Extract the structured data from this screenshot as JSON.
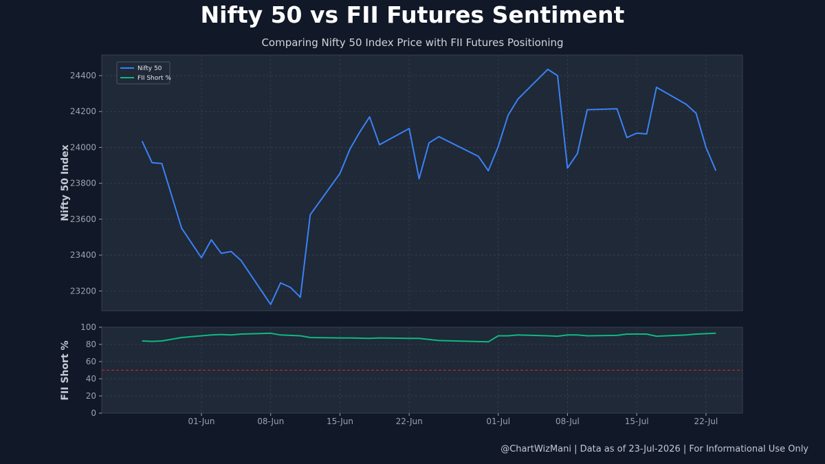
{
  "title": "Nifty 50 vs FII Futures Sentiment",
  "subtitle": "Comparing Nifty 50 Index Price with FII Futures Positioning",
  "footer": "@ChartWizMani | Data as of 23-Jul-2026 | For Informational Use Only",
  "colors": {
    "background": "#111827",
    "panel": "#1f2937",
    "nifty_line": "#3b82f6",
    "fii_line": "#10b981",
    "reference_line": "#dc2626",
    "grid": "#374151"
  },
  "chart_data": [
    {
      "type": "line",
      "ylabel": "Nifty 50 Index",
      "ylim": [
        23090,
        24515
      ],
      "yticks": [
        23200,
        23400,
        23600,
        23800,
        24000,
        24200,
        24400
      ],
      "grid": true,
      "legend": {
        "placement": "top-left",
        "entries": [
          "Nifty 50",
          "FII Short %"
        ]
      },
      "series": [
        {
          "name": "Nifty 50",
          "color": "#3b82f6",
          "points": [
            [
              "2026-05-26",
              24035
            ],
            [
              "2026-05-27",
              23915
            ],
            [
              "2026-05-28",
              23910
            ],
            [
              "2026-05-30",
              23550
            ],
            [
              "2026-06-01",
              23385
            ],
            [
              "2026-06-02",
              23485
            ],
            [
              "2026-06-03",
              23410
            ],
            [
              "2026-06-04",
              23420
            ],
            [
              "2026-06-05",
              23370
            ],
            [
              "2026-06-08",
              23125
            ],
            [
              "2026-06-09",
              23245
            ],
            [
              "2026-06-10",
              23220
            ],
            [
              "2026-06-11",
              23165
            ],
            [
              "2026-06-12",
              23625
            ],
            [
              "2026-06-15",
              23855
            ],
            [
              "2026-06-16",
              23990
            ],
            [
              "2026-06-17",
              24085
            ],
            [
              "2026-06-18",
              24170
            ],
            [
              "2026-06-19",
              24015
            ],
            [
              "2026-06-22",
              24105
            ],
            [
              "2026-06-23",
              23825
            ],
            [
              "2026-06-24",
              24025
            ],
            [
              "2026-06-25",
              24060
            ],
            [
              "2026-06-29",
              23950
            ],
            [
              "2026-06-30",
              23870
            ],
            [
              "2026-07-01",
              24005
            ],
            [
              "2026-07-02",
              24180
            ],
            [
              "2026-07-03",
              24270
            ],
            [
              "2026-07-06",
              24435
            ],
            [
              "2026-07-07",
              24400
            ],
            [
              "2026-07-08",
              23885
            ],
            [
              "2026-07-09",
              23965
            ],
            [
              "2026-07-10",
              24210
            ],
            [
              "2026-07-13",
              24215
            ],
            [
              "2026-07-14",
              24055
            ],
            [
              "2026-07-15",
              24080
            ],
            [
              "2026-07-16",
              24075
            ],
            [
              "2026-07-17",
              24335
            ],
            [
              "2026-07-20",
              24240
            ],
            [
              "2026-07-21",
              24190
            ],
            [
              "2026-07-22",
              24000
            ],
            [
              "2026-07-23",
              23870
            ]
          ]
        }
      ]
    },
    {
      "type": "line",
      "ylabel": "FII Short %",
      "ylim": [
        0,
        100
      ],
      "yticks": [
        0,
        20,
        40,
        60,
        80,
        100
      ],
      "xticks": [
        "01-Jun",
        "08-Jun",
        "15-Jun",
        "22-Jun",
        "01-Jul",
        "08-Jul",
        "15-Jul",
        "22-Jul"
      ],
      "xtick_dates": [
        "2026-06-01",
        "2026-06-08",
        "2026-06-15",
        "2026-06-22",
        "2026-07-01",
        "2026-07-08",
        "2026-07-15",
        "2026-07-22"
      ],
      "reference_line": {
        "y": 50,
        "style": "dashed",
        "color": "#dc2626"
      },
      "grid": true,
      "series": [
        {
          "name": "FII Short %",
          "color": "#10b981",
          "points": [
            [
              "2026-05-26",
              84
            ],
            [
              "2026-05-27",
              83.5
            ],
            [
              "2026-05-28",
              84
            ],
            [
              "2026-05-30",
              88
            ],
            [
              "2026-06-01",
              90
            ],
            [
              "2026-06-02",
              91
            ],
            [
              "2026-06-03",
              91.5
            ],
            [
              "2026-06-04",
              91
            ],
            [
              "2026-06-05",
              92
            ],
            [
              "2026-06-08",
              93
            ],
            [
              "2026-06-09",
              91
            ],
            [
              "2026-06-11",
              90
            ],
            [
              "2026-06-12",
              88
            ],
            [
              "2026-06-15",
              87.5
            ],
            [
              "2026-06-16",
              87.5
            ],
            [
              "2026-06-18",
              87
            ],
            [
              "2026-06-19",
              87.5
            ],
            [
              "2026-06-22",
              87
            ],
            [
              "2026-06-23",
              87
            ],
            [
              "2026-06-25",
              84.5
            ],
            [
              "2026-06-30",
              83
            ],
            [
              "2026-07-01",
              90
            ],
            [
              "2026-07-02",
              90
            ],
            [
              "2026-07-03",
              91
            ],
            [
              "2026-07-06",
              90
            ],
            [
              "2026-07-07",
              89.5
            ],
            [
              "2026-07-08",
              91
            ],
            [
              "2026-07-09",
              91
            ],
            [
              "2026-07-10",
              90
            ],
            [
              "2026-07-13",
              90.5
            ],
            [
              "2026-07-14",
              92
            ],
            [
              "2026-07-16",
              92
            ],
            [
              "2026-07-17",
              89.5
            ],
            [
              "2026-07-20",
              91
            ],
            [
              "2026-07-21",
              92
            ],
            [
              "2026-07-23",
              93
            ]
          ]
        }
      ]
    }
  ]
}
